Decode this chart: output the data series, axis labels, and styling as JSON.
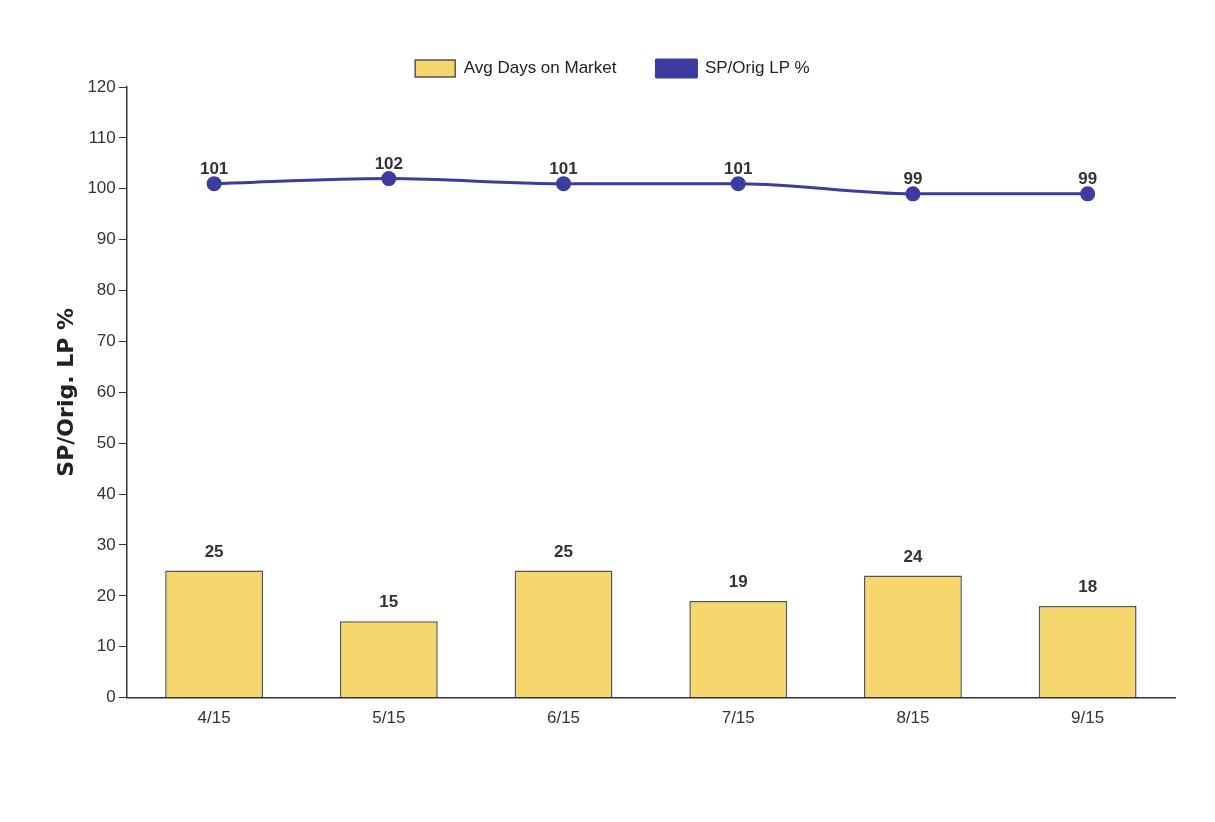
{
  "chart_data": {
    "type": "bar",
    "ylabel": "SP/Orig. LP %",
    "categories": [
      "4/15",
      "5/15",
      "6/15",
      "7/15",
      "8/15",
      "9/15"
    ],
    "series": [
      {
        "name": "Avg Days on Market",
        "color": "#f5d76e",
        "values": [
          25,
          15,
          25,
          19,
          24,
          18
        ]
      },
      {
        "name": "SP/Orig LP %",
        "type": "line",
        "color": "#3c3ca0",
        "values": [
          101,
          102,
          101,
          101,
          99,
          99
        ]
      }
    ],
    "ylim": [
      0,
      120
    ],
    "yticks": [
      0,
      10,
      20,
      30,
      40,
      50,
      60,
      70,
      80,
      90,
      100,
      110,
      120
    ],
    "grid": false,
    "legend": "top",
    "marker": "circle",
    "line_style": "solid",
    "data_labels": true
  }
}
